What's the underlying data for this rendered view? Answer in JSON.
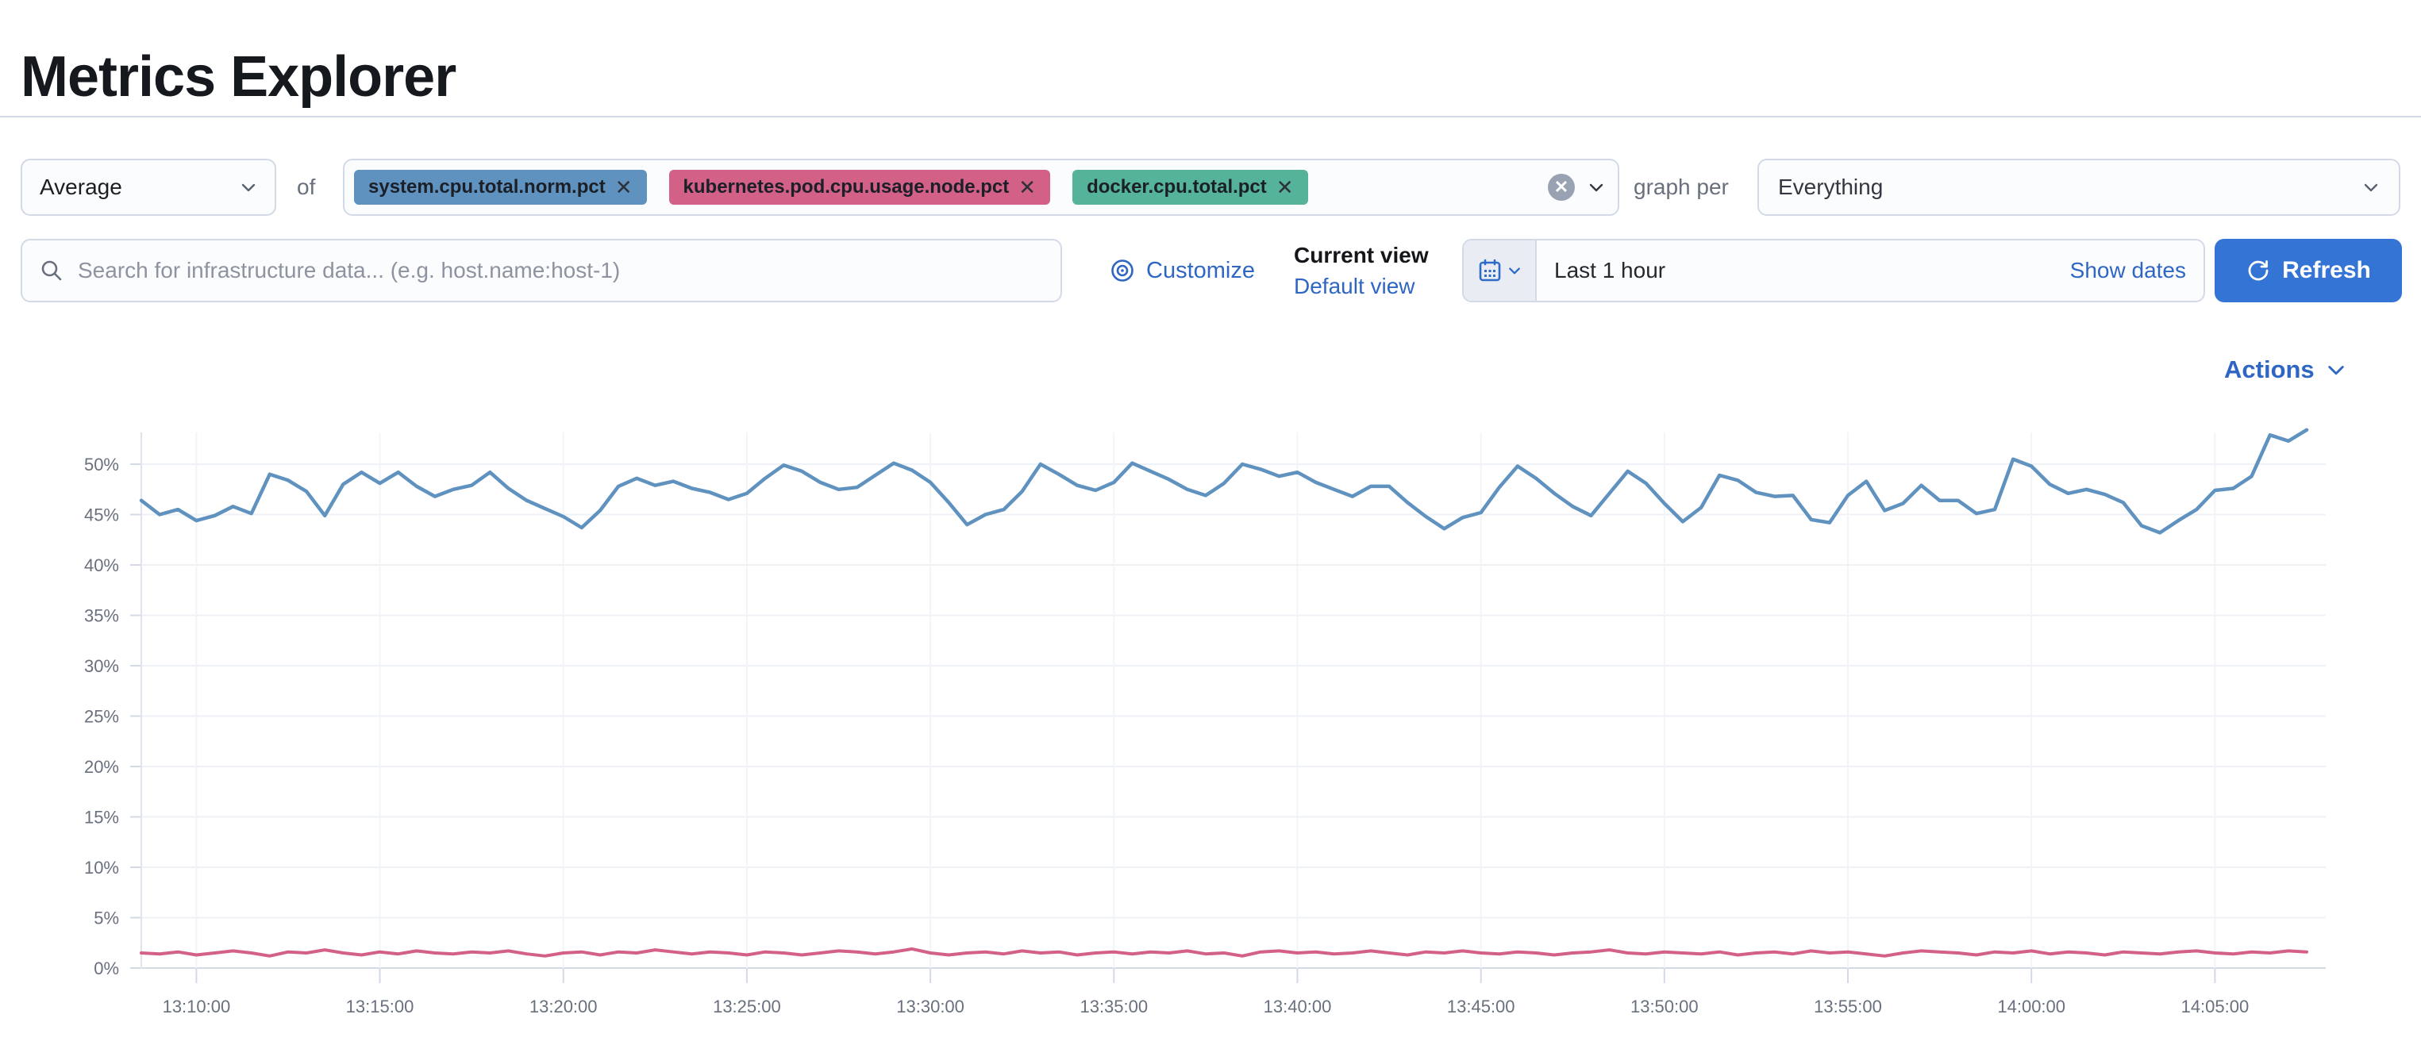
{
  "page": {
    "title": "Metrics Explorer"
  },
  "toolbar": {
    "aggregation": {
      "value": "Average"
    },
    "of_label": "of",
    "metrics": [
      {
        "label": "system.cpu.total.norm.pct",
        "remove_glyph": "✕",
        "color": "#6092C0"
      },
      {
        "label": "kubernetes.pod.cpu.usage.node.pct",
        "remove_glyph": "✕",
        "color": "#D36086"
      },
      {
        "label": "docker.cpu.total.pct",
        "remove_glyph": "✕",
        "color": "#54B399"
      }
    ],
    "clear_glyph": "✕",
    "graph_per_label": "graph per",
    "group_by": {
      "value": "Everything"
    }
  },
  "searchbar": {
    "placeholder": "Search for infrastructure data... (e.g. host.name:host-1)"
  },
  "view_controls": {
    "customize_label": "Customize",
    "current_view_label": "Current view",
    "default_view_label": "Default view"
  },
  "timepicker": {
    "value": "Last 1 hour",
    "show_dates_label": "Show dates",
    "refresh_label": "Refresh"
  },
  "actions_label": "Actions",
  "colors": {
    "link_blue": "#2f66c4",
    "primary_button": "#3374d4",
    "series_blue": "#6092C0",
    "series_pink": "#D36086",
    "badge_green": "#54B399",
    "grid_line": "#eef1f6",
    "axis_line": "#d3dae6",
    "axis_text": "#69707d"
  },
  "chart_data": {
    "type": "line",
    "title": "",
    "xlabel": "",
    "ylabel": "",
    "grid": true,
    "legend": "none",
    "x_tick_labels": [
      "13:10:00",
      "13:15:00",
      "13:20:00",
      "13:25:00",
      "13:30:00",
      "13:35:00",
      "13:40:00",
      "13:45:00",
      "13:50:00",
      "13:55:00",
      "14:00:00",
      "14:05:00"
    ],
    "x_tick_minutes": [
      0,
      5,
      10,
      15,
      20,
      25,
      30,
      35,
      40,
      45,
      50,
      55
    ],
    "x_range_minutes": [
      -1.5,
      57.5
    ],
    "y_tick_labels": [
      "0%",
      "5%",
      "10%",
      "15%",
      "20%",
      "25%",
      "30%",
      "35%",
      "40%",
      "45%",
      "50%"
    ],
    "y_tick_values": [
      0,
      5,
      10,
      15,
      20,
      25,
      30,
      35,
      40,
      45,
      50
    ],
    "ylim": [
      0,
      54
    ],
    "series": [
      {
        "name": "system.cpu.total.norm.pct",
        "color": "#6092C0",
        "unit": "%",
        "values": [
          46.4,
          45.0,
          45.5,
          44.4,
          44.9,
          45.8,
          45.1,
          49.0,
          48.4,
          47.3,
          44.9,
          48.0,
          49.2,
          48.1,
          49.2,
          47.8,
          46.8,
          47.5,
          47.9,
          49.2,
          47.6,
          46.4,
          45.6,
          44.8,
          43.7,
          45.4,
          47.8,
          48.6,
          47.9,
          48.3,
          47.6,
          47.2,
          46.5,
          47.1,
          48.6,
          49.9,
          49.3,
          48.2,
          47.5,
          47.7,
          48.9,
          50.1,
          49.4,
          48.2,
          46.2,
          44.0,
          45.0,
          45.5,
          47.3,
          50.0,
          49.0,
          47.9,
          47.4,
          48.2,
          50.1,
          49.3,
          48.5,
          47.5,
          46.9,
          48.1,
          50.0,
          49.5,
          48.8,
          49.2,
          48.2,
          47.5,
          46.8,
          47.8,
          47.8,
          46.2,
          44.8,
          43.6,
          44.7,
          45.2,
          47.7,
          49.8,
          48.6,
          47.1,
          45.8,
          44.9,
          47.1,
          49.3,
          48.1,
          46.1,
          44.3,
          45.7,
          48.9,
          48.4,
          47.2,
          46.8,
          46.9,
          44.5,
          44.2,
          46.9,
          48.3,
          45.4,
          46.1,
          47.9,
          46.4,
          46.4,
          45.1,
          45.5,
          50.5,
          49.8,
          48.0,
          47.1,
          47.5,
          47.0,
          46.2,
          43.9,
          43.2,
          44.4,
          45.5,
          47.4,
          47.6,
          48.8,
          52.9,
          52.3,
          53.4
        ]
      },
      {
        "name": "kubernetes.pod.cpu.usage.node.pct",
        "color": "#D36086",
        "unit": "%",
        "values": [
          1.5,
          1.4,
          1.6,
          1.3,
          1.5,
          1.7,
          1.5,
          1.2,
          1.6,
          1.5,
          1.8,
          1.5,
          1.3,
          1.6,
          1.4,
          1.7,
          1.5,
          1.4,
          1.6,
          1.5,
          1.7,
          1.4,
          1.2,
          1.5,
          1.6,
          1.3,
          1.6,
          1.5,
          1.8,
          1.6,
          1.4,
          1.6,
          1.5,
          1.3,
          1.6,
          1.5,
          1.3,
          1.5,
          1.7,
          1.6,
          1.4,
          1.6,
          1.9,
          1.5,
          1.3,
          1.5,
          1.6,
          1.4,
          1.7,
          1.5,
          1.6,
          1.3,
          1.5,
          1.6,
          1.4,
          1.6,
          1.5,
          1.7,
          1.4,
          1.5,
          1.2,
          1.6,
          1.7,
          1.5,
          1.6,
          1.4,
          1.5,
          1.7,
          1.5,
          1.3,
          1.6,
          1.5,
          1.7,
          1.5,
          1.4,
          1.6,
          1.5,
          1.3,
          1.5,
          1.6,
          1.8,
          1.5,
          1.4,
          1.6,
          1.5,
          1.4,
          1.6,
          1.3,
          1.5,
          1.6,
          1.4,
          1.7,
          1.5,
          1.6,
          1.4,
          1.2,
          1.5,
          1.7,
          1.6,
          1.5,
          1.3,
          1.6,
          1.5,
          1.7,
          1.4,
          1.6,
          1.5,
          1.3,
          1.6,
          1.5,
          1.4,
          1.6,
          1.7,
          1.5,
          1.4,
          1.6,
          1.5,
          1.7,
          1.6
        ]
      }
    ]
  }
}
